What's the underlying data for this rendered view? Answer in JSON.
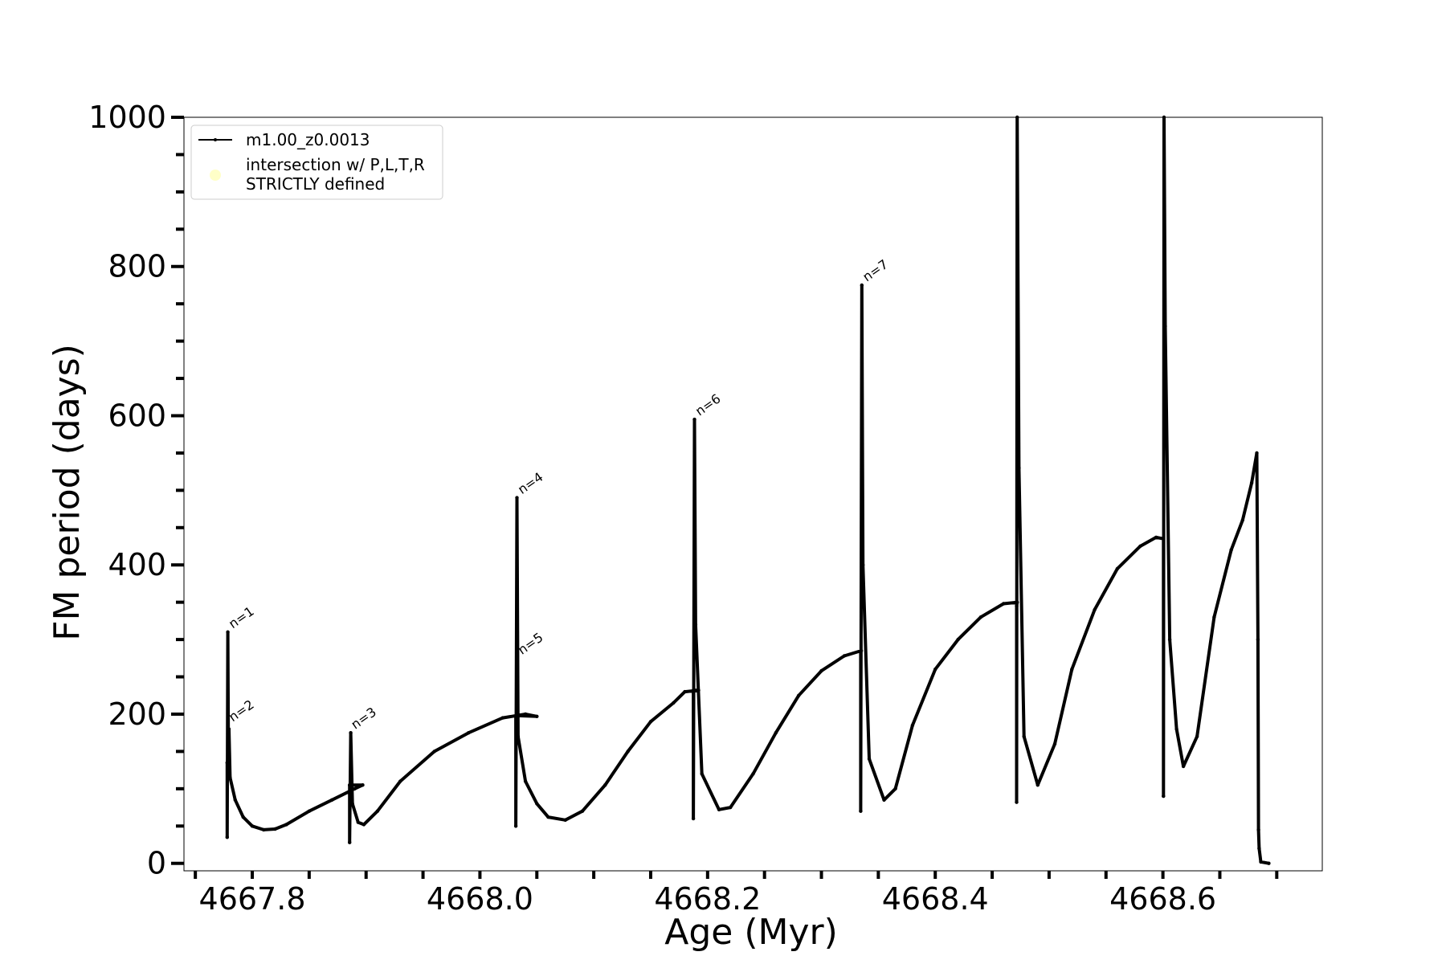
{
  "chart_data": {
    "type": "line",
    "xlabel": "Age (Myr)",
    "ylabel": "FM period (days)",
    "xlim": [
      4667.74,
      4668.74
    ],
    "ylim": [
      -10,
      1000
    ],
    "x_ticks": [
      4667.8,
      4668.0,
      4668.2,
      4668.4,
      4668.6
    ],
    "x_tick_labels": [
      "4667.8",
      "4668.0",
      "4668.2",
      "4668.4",
      "4668.6"
    ],
    "x_minor_ticks": [
      4667.75,
      4667.85,
      4667.9,
      4667.95,
      4668.05,
      4668.1,
      4668.15,
      4668.25,
      4668.3,
      4668.35,
      4668.45,
      4668.5,
      4668.55,
      4668.65,
      4668.7
    ],
    "y_ticks": [
      0,
      200,
      400,
      600,
      800,
      1000
    ],
    "y_tick_labels": [
      "0",
      "200",
      "400",
      "600",
      "800",
      "1000"
    ],
    "y_minor_ticks": [
      50,
      100,
      150,
      250,
      300,
      350,
      450,
      500,
      550,
      650,
      700,
      750,
      850,
      900,
      950
    ],
    "grid": false,
    "legend_position": "upper-left",
    "legend": [
      {
        "label": "m1.00_z0.0013",
        "marker": "line",
        "color": "#000000"
      },
      {
        "label_lines": [
          "intersection w/ P,L,T,R",
          "STRICTLY defined"
        ],
        "marker": "circle",
        "color": "#ffffc8"
      }
    ],
    "series": [
      {
        "name": "m1.00_z0.0013",
        "color": "#000000",
        "points": [
          [
            4667.778,
            135
          ],
          [
            4667.778,
            35
          ],
          [
            4667.7785,
            310
          ],
          [
            4667.779,
            150
          ],
          [
            4667.7795,
            180
          ],
          [
            4667.7805,
            115
          ],
          [
            4667.785,
            85
          ],
          [
            4667.792,
            62
          ],
          [
            4667.8,
            50
          ],
          [
            4667.81,
            45
          ],
          [
            4667.82,
            46
          ],
          [
            4667.83,
            52
          ],
          [
            4667.85,
            70
          ],
          [
            4667.87,
            85
          ],
          [
            4667.89,
            100
          ],
          [
            4667.897,
            105
          ],
          [
            4667.8855,
            105
          ],
          [
            4667.8855,
            28
          ],
          [
            4667.8865,
            175
          ],
          [
            4667.888,
            80
          ],
          [
            4667.893,
            55
          ],
          [
            4667.898,
            52
          ],
          [
            4667.91,
            70
          ],
          [
            4667.93,
            110
          ],
          [
            4667.96,
            150
          ],
          [
            4667.99,
            175
          ],
          [
            4668.02,
            195
          ],
          [
            4668.04,
            200
          ],
          [
            4668.05,
            197
          ],
          [
            4668.0315,
            198
          ],
          [
            4668.0315,
            50
          ],
          [
            4668.0325,
            490
          ],
          [
            4668.0335,
            170
          ],
          [
            4668.04,
            110
          ],
          [
            4668.05,
            80
          ],
          [
            4668.06,
            62
          ],
          [
            4668.075,
            58
          ],
          [
            4668.09,
            70
          ],
          [
            4668.11,
            105
          ],
          [
            4668.13,
            150
          ],
          [
            4668.15,
            190
          ],
          [
            4668.17,
            215
          ],
          [
            4668.18,
            230
          ],
          [
            4668.192,
            232
          ],
          [
            4668.1875,
            232
          ],
          [
            4668.1875,
            60
          ],
          [
            4668.1885,
            595
          ],
          [
            4668.1895,
            320
          ],
          [
            4668.195,
            120
          ],
          [
            4668.21,
            72
          ],
          [
            4668.22,
            75
          ],
          [
            4668.24,
            120
          ],
          [
            4668.26,
            175
          ],
          [
            4668.28,
            225
          ],
          [
            4668.3,
            258
          ],
          [
            4668.32,
            278
          ],
          [
            4668.335,
            285
          ],
          [
            4668.3345,
            283
          ],
          [
            4668.3345,
            70
          ],
          [
            4668.3355,
            775
          ],
          [
            4668.3365,
            400
          ],
          [
            4668.342,
            140
          ],
          [
            4668.355,
            85
          ],
          [
            4668.365,
            100
          ],
          [
            4668.38,
            185
          ],
          [
            4668.4,
            260
          ],
          [
            4668.42,
            300
          ],
          [
            4668.44,
            330
          ],
          [
            4668.46,
            348
          ],
          [
            4668.472,
            350
          ],
          [
            4668.4715,
            345
          ],
          [
            4668.4715,
            82
          ],
          [
            4668.472,
            1000
          ],
          [
            4668.4735,
            530
          ],
          [
            4668.478,
            170
          ],
          [
            4668.49,
            105
          ],
          [
            4668.505,
            160
          ],
          [
            4668.52,
            260
          ],
          [
            4668.54,
            340
          ],
          [
            4668.56,
            395
          ],
          [
            4668.58,
            425
          ],
          [
            4668.594,
            437
          ],
          [
            4668.6005,
            435
          ],
          [
            4668.6005,
            90
          ],
          [
            4668.601,
            1000
          ],
          [
            4668.602,
            720
          ],
          [
            4668.606,
            300
          ],
          [
            4668.612,
            180
          ],
          [
            4668.618,
            130
          ],
          [
            4668.63,
            170
          ],
          [
            4668.645,
            330
          ],
          [
            4668.66,
            420
          ],
          [
            4668.67,
            460
          ],
          [
            4668.678,
            510
          ],
          [
            4668.6825,
            550
          ],
          [
            4668.6835,
            300
          ],
          [
            4668.684,
            45
          ],
          [
            4668.6845,
            20
          ],
          [
            4668.686,
            2
          ],
          [
            4668.693,
            0
          ]
        ]
      }
    ],
    "annotations": [
      {
        "text": "n=1",
        "x": 4667.78,
        "y": 310
      },
      {
        "text": "n=2",
        "x": 4667.78,
        "y": 185
      },
      {
        "text": "n=3",
        "x": 4667.8875,
        "y": 175
      },
      {
        "text": "n=4",
        "x": 4668.034,
        "y": 490
      },
      {
        "text": "n=5",
        "x": 4668.034,
        "y": 275
      },
      {
        "text": "n=6",
        "x": 4668.19,
        "y": 595
      },
      {
        "text": "n=7",
        "x": 4668.337,
        "y": 775
      }
    ]
  }
}
